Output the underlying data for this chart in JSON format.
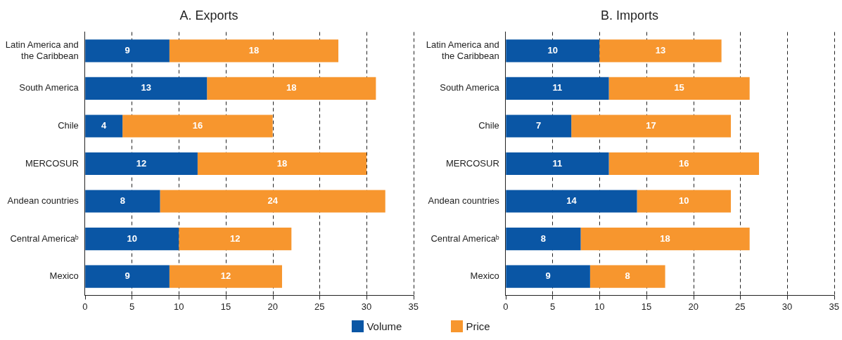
{
  "chart_data": [
    {
      "type": "bar",
      "orientation": "horizontal",
      "stacked": true,
      "title": "A. Exports",
      "categories": [
        "Latin America and the Caribbean",
        "South America",
        "Chile",
        "MERCOSUR",
        "Andean countries",
        "Central Americaᵇ",
        "Mexico"
      ],
      "series": [
        {
          "name": "Volume",
          "color": "#0a56a5",
          "values": [
            9,
            13,
            4,
            12,
            8,
            10,
            9
          ]
        },
        {
          "name": "Price",
          "color": "#f7962e",
          "values": [
            18,
            18,
            16,
            18,
            24,
            12,
            12
          ]
        }
      ],
      "xlim": [
        0,
        35
      ],
      "xticks": [
        0,
        5,
        10,
        15,
        20,
        25,
        30,
        35
      ],
      "grid": "x",
      "legend": "bottom",
      "data_labels": true
    },
    {
      "type": "bar",
      "orientation": "horizontal",
      "stacked": true,
      "title": "B. Imports",
      "categories": [
        "Latin America and the Caribbean",
        "South America",
        "Chile",
        "MERCOSUR",
        "Andean countries",
        "Central Americaᵇ",
        "Mexico"
      ],
      "series": [
        {
          "name": "Volume",
          "color": "#0a56a5",
          "values": [
            10,
            11,
            7,
            11,
            14,
            8,
            9
          ]
        },
        {
          "name": "Price",
          "color": "#f7962e",
          "values": [
            13,
            15,
            17,
            16,
            10,
            18,
            8
          ]
        }
      ],
      "xlim": [
        0,
        35
      ],
      "xticks": [
        0,
        5,
        10,
        15,
        20,
        25,
        30,
        35
      ],
      "grid": "x",
      "legend": "bottom",
      "data_labels": true
    }
  ]
}
